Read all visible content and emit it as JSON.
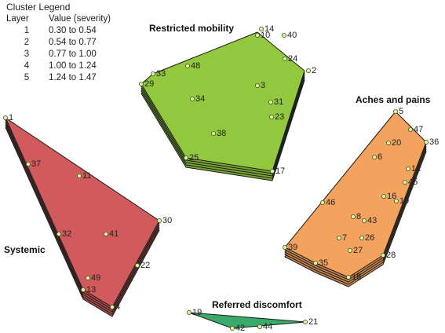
{
  "legend": {
    "title": "Cluster Legend",
    "col_layer": "Layer",
    "col_value": "Value (severity)",
    "rows": [
      {
        "layer": "1",
        "value": "0.30 to 0.54"
      },
      {
        "layer": "2",
        "value": "0.54 to 0.77"
      },
      {
        "layer": "3",
        "value": "0.77 to 1.00"
      },
      {
        "layer": "4",
        "value": "1.00 to 1.24"
      },
      {
        "layer": "5",
        "value": "1.24 to 1.47"
      }
    ]
  },
  "clusters": [
    {
      "id": "restricted-mobility",
      "label": "Restricted mobility",
      "color": "#92c83e",
      "layers": 5,
      "polygon": [
        [
          180,
          107
        ],
        [
          195,
          94
        ],
        [
          328,
          41
        ],
        [
          388,
          90
        ],
        [
          347,
          218
        ],
        [
          237,
          201
        ]
      ],
      "points": [
        [
          "14",
          333,
          37
        ],
        [
          "10",
          328,
          45
        ],
        [
          "40",
          362,
          45
        ],
        [
          "24",
          363,
          75
        ],
        [
          "2",
          393,
          90
        ],
        [
          "48",
          239,
          84
        ],
        [
          "33",
          195,
          94
        ],
        [
          "29",
          180,
          107
        ],
        [
          "3",
          328,
          109
        ],
        [
          "34",
          245,
          126
        ],
        [
          "31",
          345,
          130
        ],
        [
          "23",
          346,
          149
        ],
        [
          "38",
          272,
          170
        ],
        [
          "25",
          237,
          201
        ],
        [
          "17",
          347,
          218
        ]
      ]
    },
    {
      "id": "systemic",
      "label": "Systemic",
      "color": "#d15a5c",
      "layers": 5,
      "polygon": [
        [
          7,
          150
        ],
        [
          203,
          281
        ],
        [
          143,
          391
        ],
        [
          106,
          369
        ]
      ],
      "points": [
        [
          "1",
          7,
          150
        ],
        [
          "37",
          36,
          209
        ],
        [
          "11",
          101,
          224
        ],
        [
          "30",
          203,
          281
        ],
        [
          "32",
          75,
          298
        ],
        [
          "41",
          135,
          298
        ],
        [
          "22",
          175,
          338
        ],
        [
          "49",
          112,
          354
        ],
        [
          "13",
          106,
          369
        ],
        [
          "4",
          143,
          391
        ]
      ]
    },
    {
      "id": "aches-and-pains",
      "label": "Aches and pains",
      "color": "#f4a35f",
      "layers": 5,
      "polygon": [
        [
          504,
          142
        ],
        [
          543,
          181
        ],
        [
          488,
          325
        ],
        [
          444,
          353
        ],
        [
          402,
          335
        ],
        [
          363,
          315
        ]
      ],
      "points": [
        [
          "5",
          504,
          142
        ],
        [
          "47",
          523,
          165
        ],
        [
          "20",
          495,
          182
        ],
        [
          "36",
          543,
          181
        ],
        [
          "6",
          477,
          200
        ],
        [
          "12",
          520,
          215
        ],
        [
          "45",
          516,
          232
        ],
        [
          "16",
          489,
          250
        ],
        [
          "19",
          505,
          256
        ],
        [
          "46",
          411,
          258
        ],
        [
          "8",
          450,
          276
        ],
        [
          "43",
          464,
          281
        ],
        [
          "7",
          432,
          303
        ],
        [
          "26",
          461,
          303
        ],
        [
          "27",
          446,
          319
        ],
        [
          "39",
          363,
          315
        ],
        [
          "35",
          402,
          335
        ],
        [
          "28",
          488,
          325
        ],
        [
          "18",
          444,
          353
        ]
      ]
    },
    {
      "id": "referred-discomfort",
      "label": "Referred discomfort",
      "color": "#3aaa6a",
      "layers": 1,
      "polygon": [
        [
          241,
          398
        ],
        [
          296,
          418
        ],
        [
          389,
          410
        ]
      ],
      "points": [
        [
          "19",
          241,
          398
        ],
        [
          "42",
          296,
          418
        ],
        [
          "44",
          331,
          416
        ],
        [
          "21",
          389,
          410
        ]
      ]
    }
  ]
}
